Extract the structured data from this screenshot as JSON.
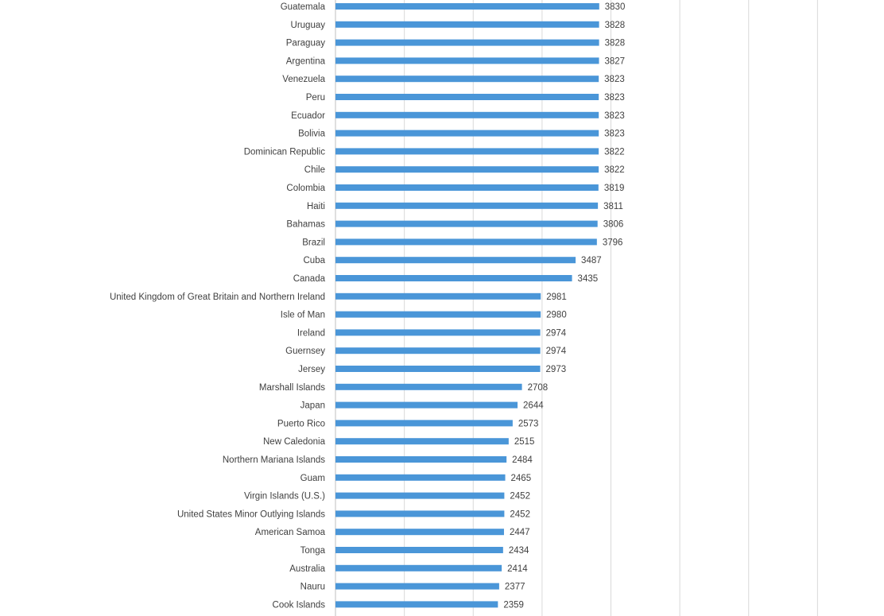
{
  "colors": {
    "bar": "#4a96d8",
    "gridline": "#d9d9d9",
    "text": "#404040",
    "background": "#ffffff"
  },
  "chart_data": {
    "type": "bar",
    "orientation": "horizontal",
    "title": "",
    "xlabel": "",
    "ylabel": "",
    "xlim": [
      0,
      8000
    ],
    "grid": true,
    "legend": "none",
    "data_labels": true,
    "categories": [
      "Guatemala",
      "Uruguay",
      "Paraguay",
      "Argentina",
      "Venezuela",
      "Peru",
      "Ecuador",
      "Bolivia",
      "Dominican Republic",
      "Chile",
      "Colombia",
      "Haiti",
      "Bahamas",
      "Brazil",
      "Cuba",
      "Canada",
      "United Kingdom of Great Britain and Northern Ireland",
      "Isle of Man",
      "Ireland",
      "Guernsey",
      "Jersey",
      "Marshall Islands",
      "Japan",
      "Puerto Rico",
      "New Caledonia",
      "Northern Mariana Islands",
      "Guam",
      "Virgin Islands (U.S.)",
      "United States Minor Outlying Islands",
      "American Samoa",
      "Tonga",
      "Australia",
      "Nauru",
      "Cook Islands"
    ],
    "values": [
      3830,
      3828,
      3828,
      3827,
      3823,
      3823,
      3823,
      3823,
      3822,
      3822,
      3819,
      3811,
      3806,
      3796,
      3487,
      3435,
      2981,
      2980,
      2974,
      2974,
      2973,
      2708,
      2644,
      2573,
      2515,
      2484,
      2465,
      2452,
      2452,
      2447,
      2434,
      2414,
      2377,
      2359
    ]
  }
}
